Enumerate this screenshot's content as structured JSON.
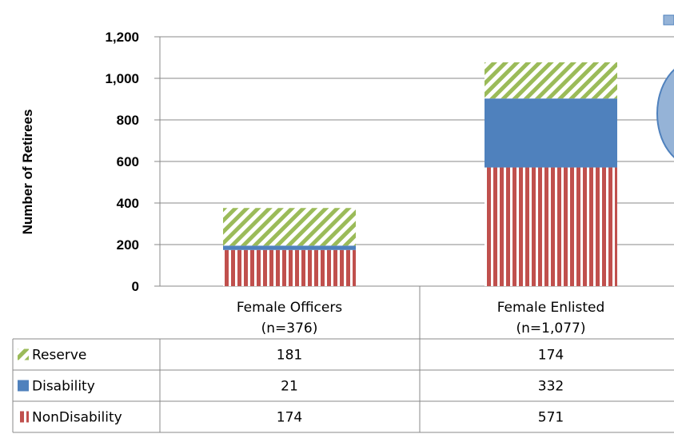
{
  "chart_data": {
    "type": "bar",
    "stacked": true,
    "title": "",
    "ylabel": "Number of Retirees",
    "xlabel": "",
    "ylim": [
      0,
      1200
    ],
    "yticks": [
      "0",
      "200",
      "400",
      "600",
      "800",
      "1,000",
      "1,200"
    ],
    "categories": [
      {
        "name": "Female Officers",
        "n": "(n=376)"
      },
      {
        "name": "Female Enlisted",
        "n": "(n=1,077)"
      }
    ],
    "series": [
      {
        "name": "NonDisability",
        "values": [
          174,
          571
        ],
        "labels": [
          "174",
          "571"
        ],
        "color": "#c0504d",
        "pattern": "vertical-stripes"
      },
      {
        "name": "Disability",
        "values": [
          21,
          332
        ],
        "labels": [
          "21",
          "332"
        ],
        "color": "#4f81bd",
        "pattern": "solid"
      },
      {
        "name": "Reserve",
        "values": [
          181,
          174
        ],
        "labels": [
          "181",
          "174"
        ],
        "color": "#9bbb59",
        "pattern": "diagonal-stripes"
      }
    ],
    "table_row_order": [
      "Reserve",
      "Disability",
      "NonDisability"
    ],
    "grid": true,
    "legend": "data-table"
  }
}
